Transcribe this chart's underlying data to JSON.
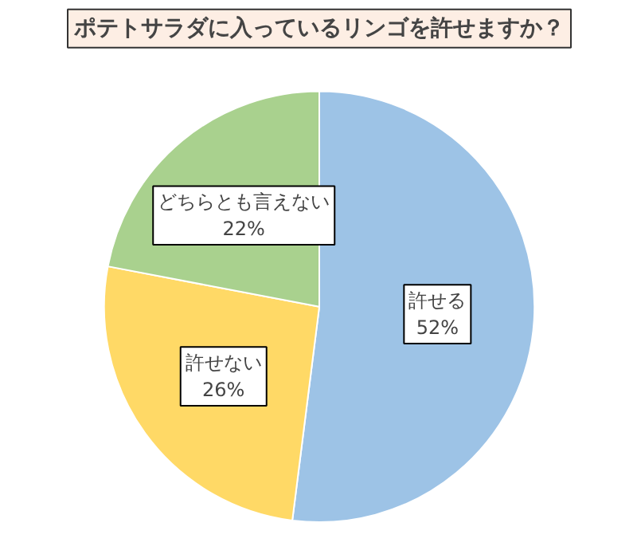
{
  "chart_data": {
    "type": "pie",
    "title": "ポテトサラダに入っているリンゴを許せますか？",
    "categories": [
      "許せる",
      "許せない",
      "どちらとも言えない"
    ],
    "values": [
      52,
      26,
      22
    ],
    "colors": [
      "#9dc3e6",
      "#ffd966",
      "#a9d18e"
    ],
    "value_labels": [
      "52%",
      "26%",
      "22%"
    ]
  }
}
